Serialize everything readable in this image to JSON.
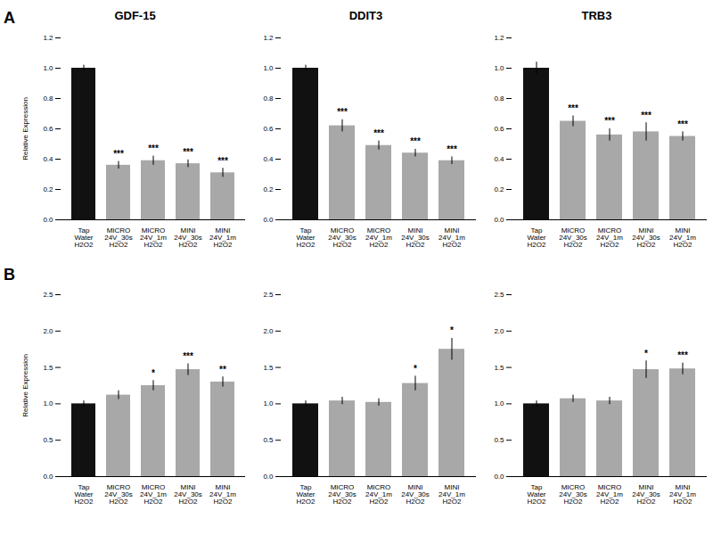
{
  "chart_data": [
    {
      "type": "bar",
      "title": "GDF-15",
      "panel_label": "A",
      "ylabel": "Relative Expression",
      "categories": [
        "Tap\nWater\nH2O2",
        "MICRO\n24V_30s\nH2O2",
        "MICRO\n24V_1m\nH2O2",
        "MINI\n24V_30s\nH2O2",
        "MINI\n24V_1m\nH2O2"
      ],
      "values": [
        1.0,
        0.36,
        0.39,
        0.37,
        0.31
      ],
      "errors": [
        0.02,
        0.025,
        0.03,
        0.025,
        0.03
      ],
      "colors": [
        "#111111",
        "#a8a8a8",
        "#a8a8a8",
        "#a8a8a8",
        "#a8a8a8"
      ],
      "annotations": [
        {
          "x": "MICRO\n24V_30s\nH2O2",
          "text": "***"
        },
        {
          "x": "MICRO\n24V_1m\nH2O2",
          "text": "***"
        },
        {
          "x": "MINI\n24V_30s\nH2O2",
          "text": "***"
        },
        {
          "x": "MINI\n24V_1m\nH2O2",
          "text": "***"
        }
      ],
      "ylim": [
        0,
        1.2
      ],
      "yticks": [
        {
          "value": 0,
          "label": "0.0"
        },
        0.2,
        0.4,
        0.6,
        0.8,
        {
          "value": 1.0,
          "label": "1.0"
        },
        1.2
      ],
      "grid": false
    },
    {
      "type": "bar",
      "title": "DDIT3",
      "categories": [
        "Tap\nWater\nH2O2",
        "MICRO\n24V_30s\nH2O2",
        "MICRO\n24V_1m\nH2O2",
        "MINI\n24V_30s\nH2O2",
        "MINI\n24V_1m\nH2O2"
      ],
      "values": [
        1.0,
        0.62,
        0.49,
        0.44,
        0.39
      ],
      "errors": [
        0.02,
        0.04,
        0.03,
        0.025,
        0.025
      ],
      "colors": [
        "#111111",
        "#a8a8a8",
        "#a8a8a8",
        "#a8a8a8",
        "#a8a8a8"
      ],
      "annotations": [
        {
          "x": "MICRO\n24V_30s\nH2O2",
          "text": "***"
        },
        {
          "x": "MICRO\n24V_1m\nH2O2",
          "text": "***"
        },
        {
          "x": "MINI\n24V_30s\nH2O2",
          "text": "***"
        },
        {
          "x": "MINI\n24V_1m\nH2O2",
          "text": "***"
        }
      ],
      "ylim": [
        0,
        1.2
      ],
      "yticks": [
        {
          "value": 0,
          "label": "0.0"
        },
        0.2,
        0.4,
        0.6,
        0.8,
        {
          "value": 1.0,
          "label": "1.0"
        },
        1.2
      ],
      "grid": false
    },
    {
      "type": "bar",
      "title": "TRB3",
      "categories": [
        "Tap\nWater\nH2O2",
        "MICRO\n24V_30s\nH2O2",
        "MICRO\n24V_1m\nH2O2",
        "MINI\n24V_30s\nH2O2",
        "MINI\n24V_1m\nH2O2"
      ],
      "values": [
        1.0,
        0.65,
        0.56,
        0.58,
        0.55
      ],
      "errors": [
        0.04,
        0.035,
        0.04,
        0.06,
        0.03
      ],
      "colors": [
        "#111111",
        "#a8a8a8",
        "#a8a8a8",
        "#a8a8a8",
        "#a8a8a8"
      ],
      "annotations": [
        {
          "x": "MICRO\n24V_30s\nH2O2",
          "text": "***"
        },
        {
          "x": "MICRO\n24V_1m\nH2O2",
          "text": "***"
        },
        {
          "x": "MINI\n24V_30s\nH2O2",
          "text": "***"
        },
        {
          "x": "MINI\n24V_1m\nH2O2",
          "text": "***"
        }
      ],
      "ylim": [
        0,
        1.2
      ],
      "yticks": [
        {
          "value": 0,
          "label": "0.0"
        },
        0.2,
        0.4,
        0.6,
        0.8,
        {
          "value": 1.0,
          "label": "1.0"
        },
        1.2
      ],
      "grid": false
    },
    {
      "type": "bar",
      "panel_label": "B",
      "ylabel": "Relative Expression",
      "categories": [
        "Tap\nWater\nH2O2",
        "MICRO\n24V_30s\nH2O2",
        "MICRO\n24V_1m\nH2O2",
        "MINI\n24V_30s\nH2O2",
        "MINI\n24V_1m\nH2O2"
      ],
      "values": [
        1.0,
        1.12,
        1.25,
        1.47,
        1.3
      ],
      "errors": [
        0.04,
        0.06,
        0.07,
        0.08,
        0.07
      ],
      "colors": [
        "#111111",
        "#a8a8a8",
        "#a8a8a8",
        "#a8a8a8",
        "#a8a8a8"
      ],
      "annotations": [
        {
          "x": "MICRO\n24V_1m\nH2O2",
          "text": "*"
        },
        {
          "x": "MINI\n24V_30s\nH2O2",
          "text": "***"
        },
        {
          "x": "MINI\n24V_1m\nH2O2",
          "text": "**"
        }
      ],
      "ylim": [
        0,
        2.5
      ],
      "yticks": [
        {
          "value": 0,
          "label": "0.0"
        },
        0.5,
        {
          "value": 1.0,
          "label": "1.0"
        },
        1.5,
        {
          "value": 2.0,
          "label": "2.0"
        },
        2.5
      ],
      "grid": false
    },
    {
      "type": "bar",
      "categories": [
        "Tap\nWater\nH2O2",
        "MICRO\n24V_30s\nH2O2",
        "MICRO\n24V_1m\nH2O2",
        "MINI\n24V_30s\nH2O2",
        "MINI\n24V_1m\nH2O2"
      ],
      "values": [
        1.0,
        1.04,
        1.02,
        1.28,
        1.75
      ],
      "errors": [
        0.04,
        0.05,
        0.05,
        0.1,
        0.15
      ],
      "colors": [
        "#111111",
        "#a8a8a8",
        "#a8a8a8",
        "#a8a8a8",
        "#a8a8a8"
      ],
      "annotations": [
        {
          "x": "MINI\n24V_30s\nH2O2",
          "text": "*"
        },
        {
          "x": "MINI\n24V_1m\nH2O2",
          "text": "*"
        }
      ],
      "ylim": [
        0,
        2.5
      ],
      "yticks": [
        {
          "value": 0,
          "label": "0.0"
        },
        0.5,
        {
          "value": 1.0,
          "label": "1.0"
        },
        1.5,
        {
          "value": 2.0,
          "label": "2.0"
        },
        2.5
      ],
      "grid": false
    },
    {
      "type": "bar",
      "categories": [
        "Tap\nWater\nH2O2",
        "MICRO\n24V_30s\nH2O2",
        "MICRO\n24V_1m\nH2O2",
        "MINI\n24V_30s\nH2O2",
        "MINI\n24V_1m\nH2O2"
      ],
      "values": [
        1.0,
        1.07,
        1.04,
        1.47,
        1.48
      ],
      "errors": [
        0.04,
        0.05,
        0.05,
        0.12,
        0.08
      ],
      "colors": [
        "#111111",
        "#a8a8a8",
        "#a8a8a8",
        "#a8a8a8",
        "#a8a8a8"
      ],
      "annotations": [
        {
          "x": "MINI\n24V_30s\nH2O2",
          "text": "*"
        },
        {
          "x": "MINI\n24V_1m\nH2O2",
          "text": "***"
        }
      ],
      "ylim": [
        0,
        2.5
      ],
      "yticks": [
        {
          "value": 0,
          "label": "0.0"
        },
        0.5,
        {
          "value": 1.0,
          "label": "1.0"
        },
        1.5,
        {
          "value": 2.0,
          "label": "2.0"
        },
        2.5
      ],
      "grid": false
    }
  ]
}
